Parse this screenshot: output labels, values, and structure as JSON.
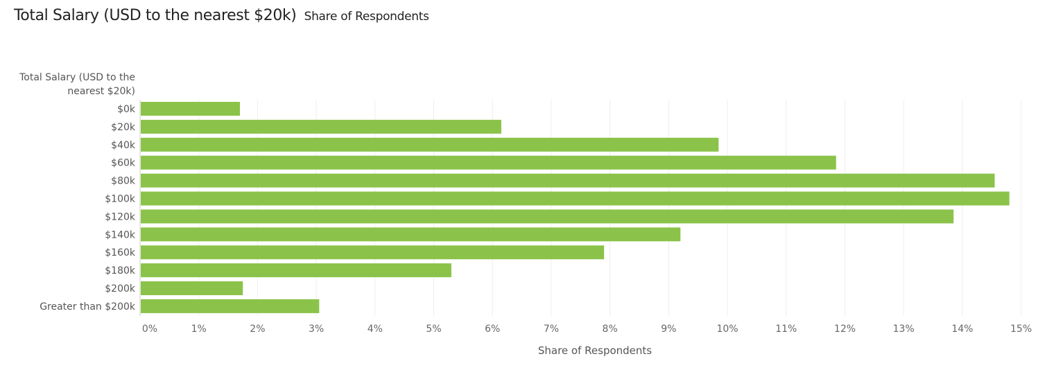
{
  "header": {
    "title": "Total Salary (USD to the nearest $20k)",
    "subtitle": "Share of Respondents"
  },
  "colors": {
    "bar": "#8bc34a",
    "grid": "#eeeeee",
    "axis": "#cccccc"
  },
  "chart_data": {
    "type": "bar",
    "orientation": "horizontal",
    "title": "Total Salary (USD to the nearest $20k)",
    "subtitle": "Share of Respondents",
    "ylabel_lines": [
      "Total Salary (USD to the",
      "nearest $20k)"
    ],
    "xlabel": "Share of Respondents",
    "categories": [
      "$0k",
      "$20k",
      "$40k",
      "$60k",
      "$80k",
      "$100k",
      "$120k",
      "$140k",
      "$160k",
      "$180k",
      "$200k",
      "Greater than $200k"
    ],
    "values": [
      1.7,
      6.15,
      9.85,
      11.85,
      14.55,
      14.8,
      13.85,
      9.2,
      7.9,
      5.3,
      1.75,
      3.05
    ],
    "xlim": [
      0,
      15.3
    ],
    "xticks": [
      0,
      1,
      2,
      3,
      4,
      5,
      6,
      7,
      8,
      9,
      10,
      11,
      12,
      13,
      14,
      15
    ],
    "xtick_labels": [
      "0%",
      "1%",
      "2%",
      "3%",
      "4%",
      "5%",
      "6%",
      "7%",
      "8%",
      "9%",
      "10%",
      "11%",
      "12%",
      "13%",
      "14%",
      "15%"
    ],
    "grid": true
  }
}
